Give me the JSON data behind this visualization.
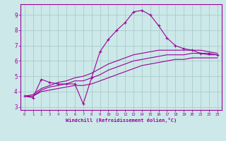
{
  "xlabel": "Windchill (Refroidissement éolien,°C)",
  "bg_color": "#cce8e8",
  "grid_color": "#aacccc",
  "line_color": "#990099",
  "x_hours": [
    0,
    1,
    2,
    3,
    4,
    5,
    6,
    7,
    8,
    9,
    10,
    11,
    12,
    13,
    14,
    15,
    16,
    17,
    18,
    19,
    20,
    21,
    22,
    23
  ],
  "y_temp": [
    3.7,
    3.6,
    4.8,
    4.6,
    4.5,
    4.5,
    4.5,
    3.2,
    4.9,
    6.6,
    7.4,
    8.0,
    8.5,
    9.2,
    9.3,
    9.0,
    8.3,
    7.5,
    7.0,
    6.8,
    6.7,
    6.5,
    6.5,
    6.4
  ],
  "y_min": [
    3.7,
    3.7,
    4.0,
    4.1,
    4.2,
    4.3,
    4.4,
    4.4,
    4.5,
    4.7,
    4.9,
    5.1,
    5.3,
    5.5,
    5.7,
    5.8,
    5.9,
    6.0,
    6.1,
    6.1,
    6.2,
    6.2,
    6.2,
    6.2
  ],
  "y_max": [
    3.7,
    3.8,
    4.2,
    4.4,
    4.6,
    4.7,
    4.9,
    5.0,
    5.2,
    5.5,
    5.8,
    6.0,
    6.2,
    6.4,
    6.5,
    6.6,
    6.7,
    6.7,
    6.7,
    6.7,
    6.7,
    6.7,
    6.6,
    6.5
  ],
  "y_mean": [
    3.7,
    3.7,
    4.1,
    4.3,
    4.4,
    4.5,
    4.7,
    4.7,
    4.9,
    5.1,
    5.4,
    5.6,
    5.8,
    6.0,
    6.1,
    6.2,
    6.3,
    6.4,
    6.4,
    6.4,
    6.5,
    6.5,
    6.4,
    6.4
  ],
  "ylim": [
    2.8,
    9.7
  ],
  "yticks": [
    3,
    4,
    5,
    6,
    7,
    8,
    9
  ],
  "xlim": [
    -0.5,
    23.5
  ],
  "xticks": [
    0,
    1,
    2,
    3,
    4,
    5,
    6,
    7,
    8,
    9,
    10,
    11,
    12,
    13,
    14,
    15,
    16,
    17,
    18,
    19,
    20,
    21,
    22,
    23
  ]
}
